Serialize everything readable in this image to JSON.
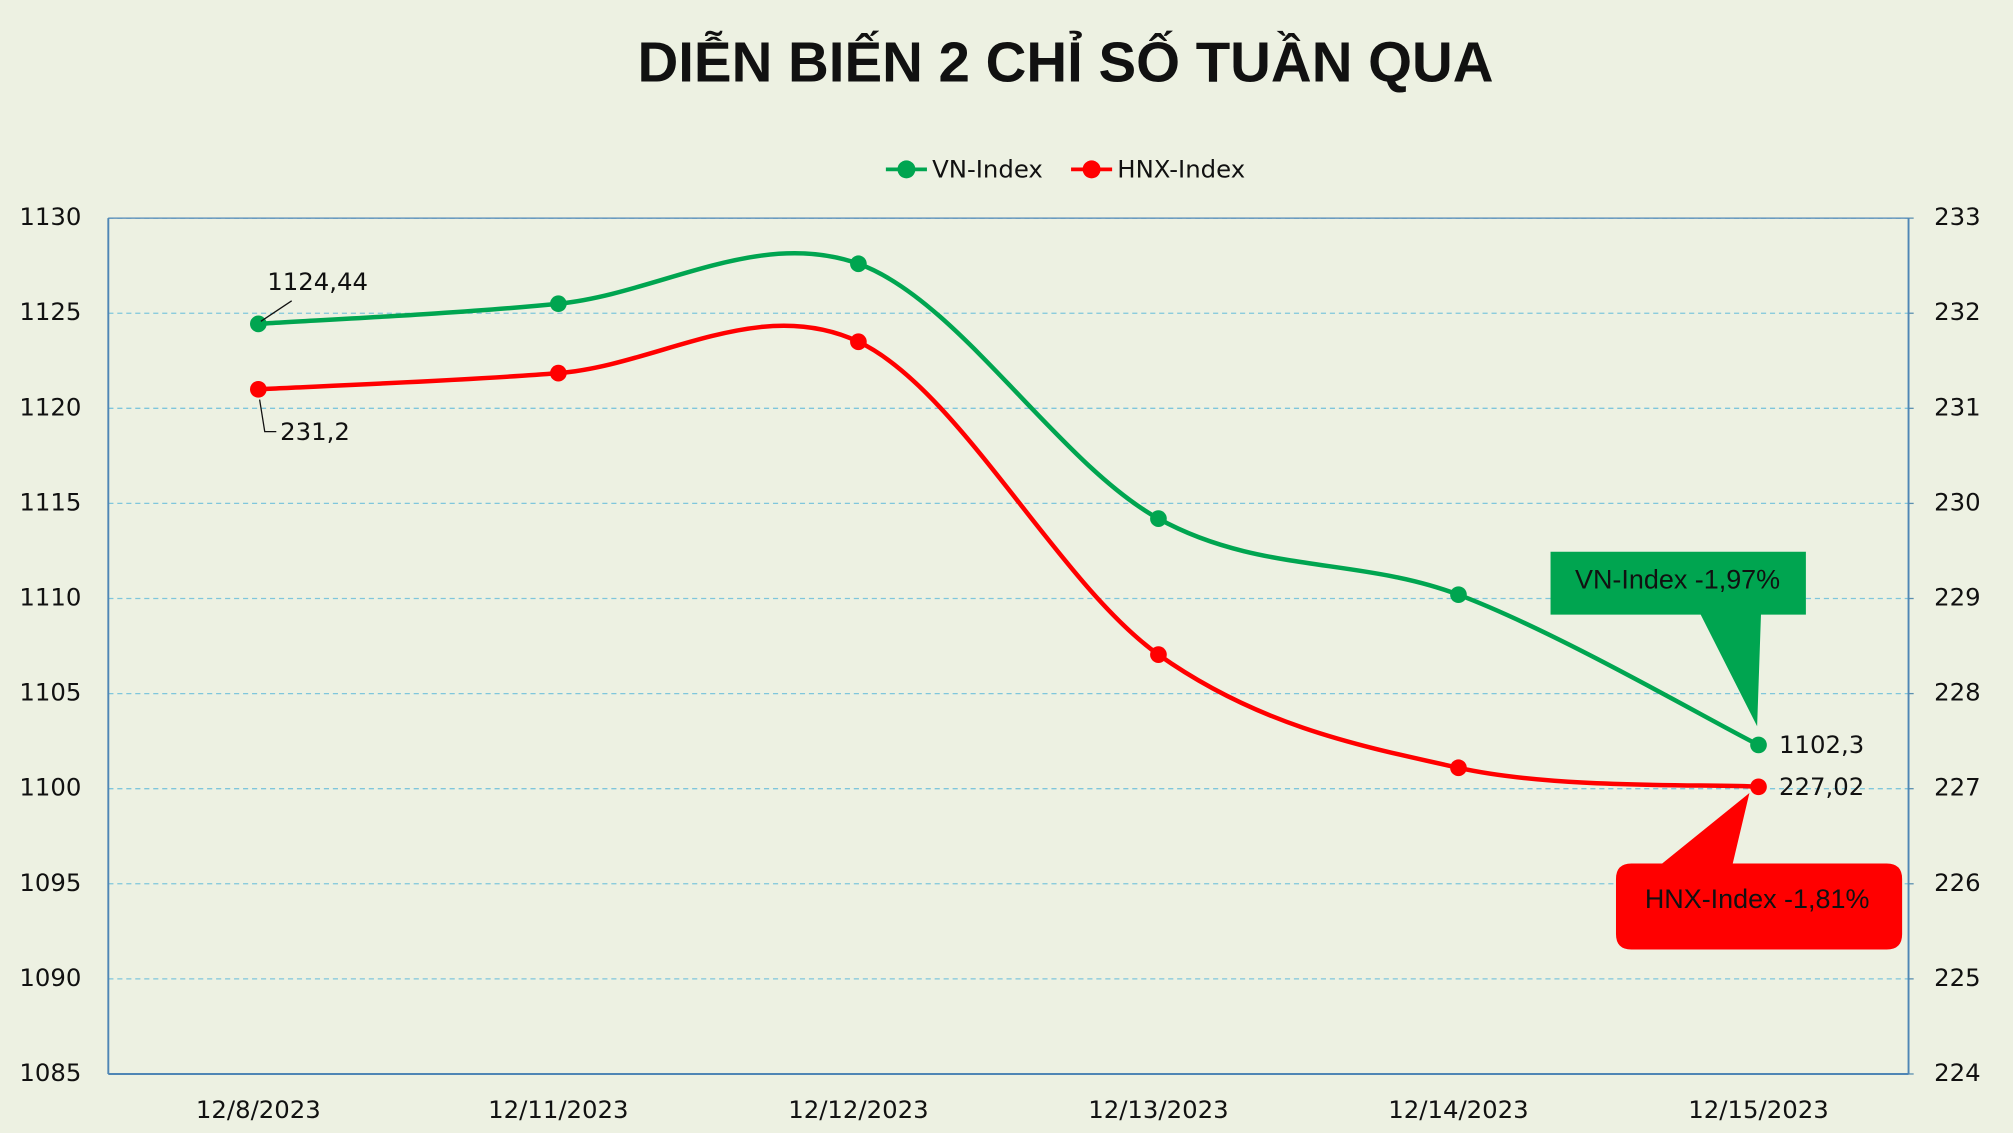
{
  "chart_data": {
    "type": "line",
    "title": "DIỄN BIẾN 2 CHỈ SỐ TUẦN QUA",
    "categories": [
      "12/8/2023",
      "12/11/2023",
      "12/12/2023",
      "12/13/2023",
      "12/14/2023",
      "12/15/2023"
    ],
    "series": [
      {
        "name": "VN-Index",
        "color": "#00a550",
        "values": [
          1124.44,
          1125.5,
          1127.6,
          1114.2,
          1110.2,
          1102.3
        ],
        "value_labels": [
          "1124,44",
          null,
          null,
          null,
          null,
          "1102,3"
        ]
      },
      {
        "name": "HNX-Index",
        "color": "#ff0000",
        "axis": "y2",
        "values": [
          231.2,
          231.37,
          231.7,
          228.41,
          227.22,
          227.02
        ],
        "value_labels": [
          "231,2",
          null,
          null,
          null,
          null,
          "227,02"
        ]
      }
    ],
    "ylim": [
      1085,
      1130
    ],
    "yticks": [
      1085,
      1090,
      1095,
      1100,
      1105,
      1110,
      1115,
      1120,
      1125,
      1130
    ],
    "y2lim": [
      224,
      233
    ],
    "y2ticks": [
      224,
      225,
      226,
      227,
      228,
      229,
      230,
      231,
      232,
      233
    ],
    "grid": true,
    "smooth": true,
    "legend": "top",
    "annotations": [
      "VN-Index -1,97%",
      "HNX-Index -1,81%"
    ]
  }
}
